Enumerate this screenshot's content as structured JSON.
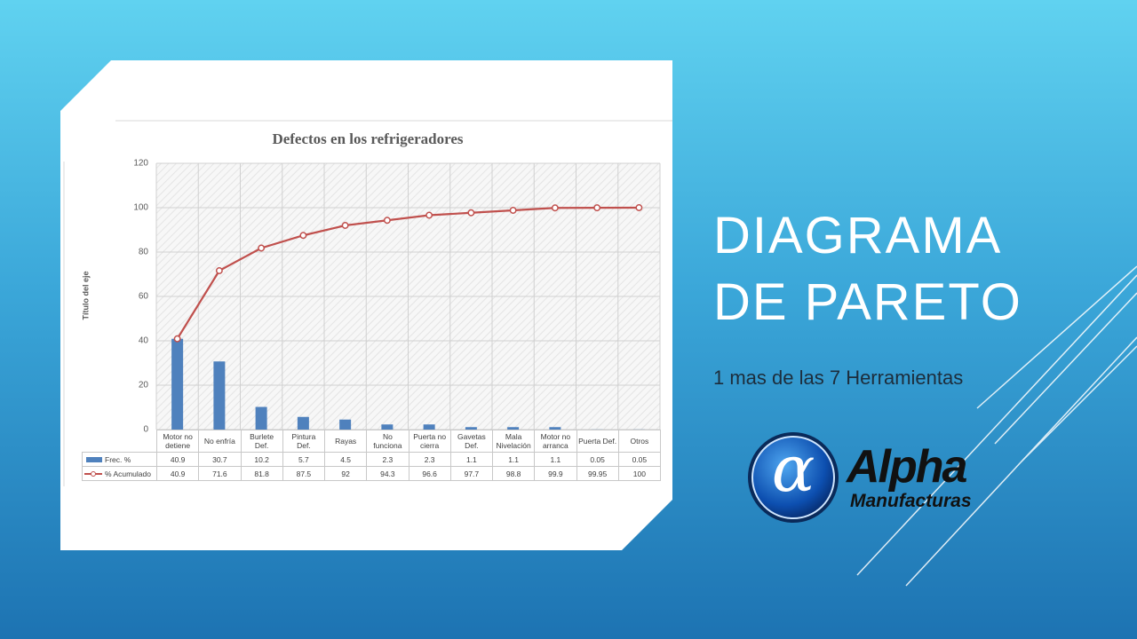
{
  "slide": {
    "title_lines": [
      "DIAGRAMA",
      "DE PARETO"
    ],
    "subtitle": "1 mas de las 7 Herramientas",
    "logo": {
      "symbol": "α",
      "name": "Alpha",
      "tagline": "Manufacturas"
    }
  },
  "chart_data": {
    "type": "bar",
    "title": "Defectos en los refrigeradores",
    "y_axis_label": "Título del eje",
    "categories": [
      "Motor no detiene",
      "No enfría",
      "Burlete Def.",
      "Pintura Def.",
      "Rayas",
      "No funciona",
      "Puerta no cierra",
      "Gavetas Def.",
      "Mala Nivelación",
      "Motor no arranca",
      "Puerta Def.",
      "Otros"
    ],
    "series": [
      {
        "name": "Frec. %",
        "type": "bar",
        "color": "#4f81bd",
        "values": [
          40.9,
          30.7,
          10.2,
          5.7,
          4.5,
          2.3,
          2.3,
          1.1,
          1.1,
          1.1,
          0.05,
          0.05
        ]
      },
      {
        "name": "% Acumulado",
        "type": "line",
        "color": "#c0504d",
        "values": [
          40.9,
          71.6,
          81.8,
          87.5,
          92,
          94.3,
          96.6,
          97.7,
          98.8,
          99.9,
          99.95,
          100
        ]
      }
    ],
    "ylim": [
      0,
      120
    ],
    "yticks": [
      0,
      20,
      40,
      60,
      80,
      100,
      120
    ],
    "grid": true
  }
}
